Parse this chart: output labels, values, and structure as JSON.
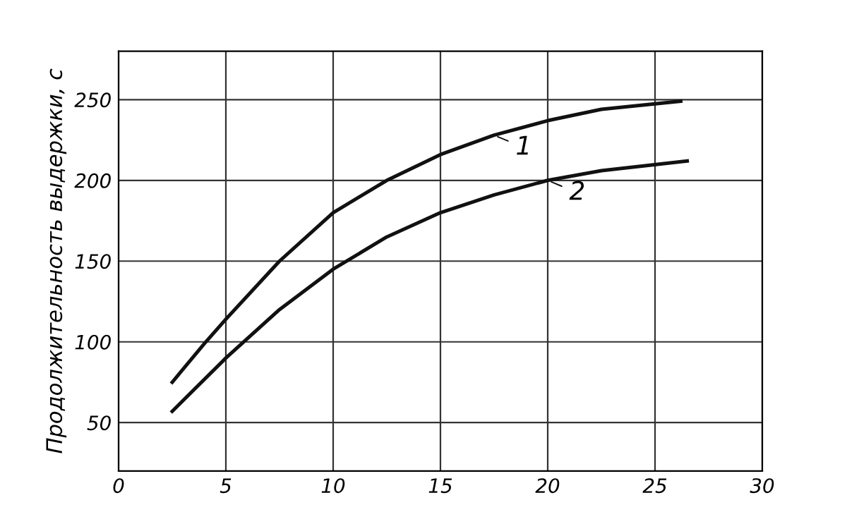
{
  "chart_data": {
    "type": "line",
    "ylabel": "Продолжительность выдержки, с",
    "xlim": [
      0,
      30
    ],
    "xticks": [
      0,
      5,
      10,
      15,
      20,
      25,
      30
    ],
    "ylim": [
      20,
      280
    ],
    "yticks": [
      50,
      100,
      150,
      200,
      250
    ],
    "grid": true,
    "legend": "right",
    "marker": "none",
    "line_style": "solid",
    "series": [
      {
        "name": "1",
        "color": "#111111",
        "x": [
          2.5,
          4,
          5,
          7.5,
          10,
          12.5,
          15,
          17.5,
          20,
          22.5,
          26.2
        ],
        "values": [
          75,
          99,
          114,
          150,
          180,
          200,
          216,
          228,
          237,
          244,
          249
        ]
      },
      {
        "name": "2",
        "color": "#111111",
        "x": [
          2.5,
          5,
          7.5,
          10,
          12.5,
          15,
          17.5,
          20,
          22.5,
          26.5
        ],
        "values": [
          57,
          90,
          120,
          145,
          165,
          180,
          191,
          200,
          206,
          212
        ]
      }
    ]
  }
}
